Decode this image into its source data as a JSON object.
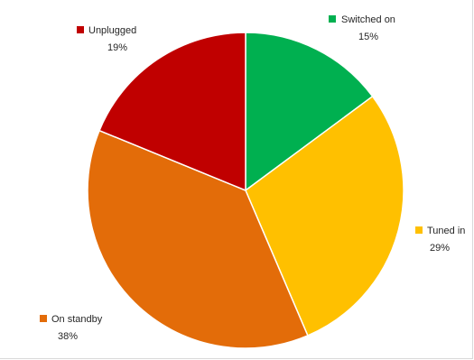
{
  "chart_data": {
    "type": "pie",
    "start_angle_deg": 0,
    "direction": "clockwise",
    "slices": [
      {
        "label": "Switched on",
        "percent_label": "15%",
        "value": 15,
        "color": "#00b050"
      },
      {
        "label": "Tuned in",
        "percent_label": "29%",
        "value": 29,
        "color": "#ffc000"
      },
      {
        "label": "On standby",
        "percent_label": "38%",
        "value": 38,
        "color": "#e36c09"
      },
      {
        "label": "Unplugged",
        "percent_label": "19%",
        "value": 19,
        "color": "#c00000"
      }
    ]
  }
}
